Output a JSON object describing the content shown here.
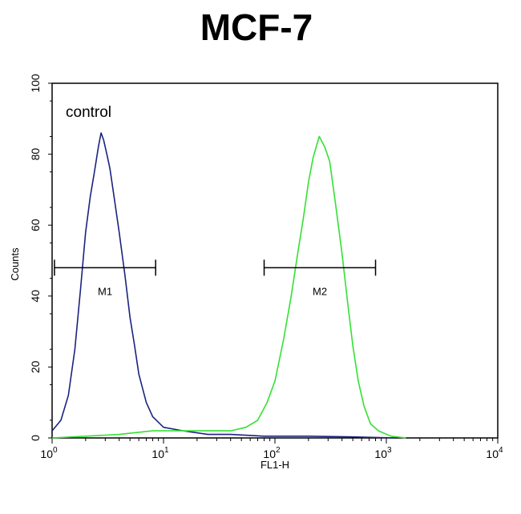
{
  "chart_data": {
    "type": "line",
    "title": "MCF-7",
    "xlabel": "FL1-H",
    "ylabel": "Counts",
    "x_scale": "log",
    "xlim": [
      1,
      10000
    ],
    "ylim": [
      0,
      100
    ],
    "x_ticks": [
      {
        "value": 1,
        "base": "10",
        "exp": "0"
      },
      {
        "value": 10,
        "base": "10",
        "exp": "1"
      },
      {
        "value": 100,
        "base": "10",
        "exp": "2"
      },
      {
        "value": 1000,
        "base": "10",
        "exp": "3"
      },
      {
        "value": 10000,
        "base": "10",
        "exp": "4"
      }
    ],
    "y_ticks": [
      0,
      20,
      40,
      60,
      80,
      100
    ],
    "annotation": "control",
    "series": [
      {
        "color": "#1a237e",
        "points": [
          [
            1.0,
            2
          ],
          [
            1.2,
            5
          ],
          [
            1.4,
            12
          ],
          [
            1.6,
            25
          ],
          [
            1.8,
            42
          ],
          [
            2.0,
            58
          ],
          [
            2.2,
            68
          ],
          [
            2.4,
            75
          ],
          [
            2.6,
            82
          ],
          [
            2.75,
            86
          ],
          [
            2.9,
            84
          ],
          [
            3.1,
            80
          ],
          [
            3.3,
            76
          ],
          [
            3.6,
            68
          ],
          [
            4.0,
            58
          ],
          [
            4.5,
            46
          ],
          [
            5.0,
            34
          ],
          [
            5.5,
            26
          ],
          [
            6.0,
            18
          ],
          [
            7.0,
            10
          ],
          [
            8.0,
            6
          ],
          [
            10.0,
            3
          ],
          [
            15,
            2
          ],
          [
            25,
            1
          ],
          [
            40,
            1
          ],
          [
            80,
            0.5
          ],
          [
            200,
            0.5
          ],
          [
            500,
            0.3
          ],
          [
            1200,
            0
          ]
        ]
      },
      {
        "color": "#33e133",
        "points": [
          [
            1.0,
            0
          ],
          [
            2,
            0.5
          ],
          [
            4,
            1
          ],
          [
            8,
            2
          ],
          [
            15,
            2
          ],
          [
            25,
            2
          ],
          [
            40,
            2
          ],
          [
            55,
            3
          ],
          [
            70,
            5
          ],
          [
            85,
            10
          ],
          [
            100,
            16
          ],
          [
            120,
            28
          ],
          [
            140,
            40
          ],
          [
            160,
            52
          ],
          [
            180,
            62
          ],
          [
            200,
            72
          ],
          [
            220,
            79
          ],
          [
            250,
            85
          ],
          [
            280,
            82
          ],
          [
            310,
            78
          ],
          [
            350,
            66
          ],
          [
            400,
            52
          ],
          [
            450,
            38
          ],
          [
            500,
            26
          ],
          [
            560,
            16
          ],
          [
            630,
            9
          ],
          [
            720,
            4
          ],
          [
            850,
            2
          ],
          [
            1100,
            0.5
          ],
          [
            1500,
            0
          ]
        ]
      }
    ],
    "markers": [
      {
        "label": "M1",
        "x_start": 1.05,
        "x_end": 8.5,
        "y": 48
      },
      {
        "label": "M2",
        "x_start": 80,
        "x_end": 800,
        "y": 48
      }
    ]
  }
}
